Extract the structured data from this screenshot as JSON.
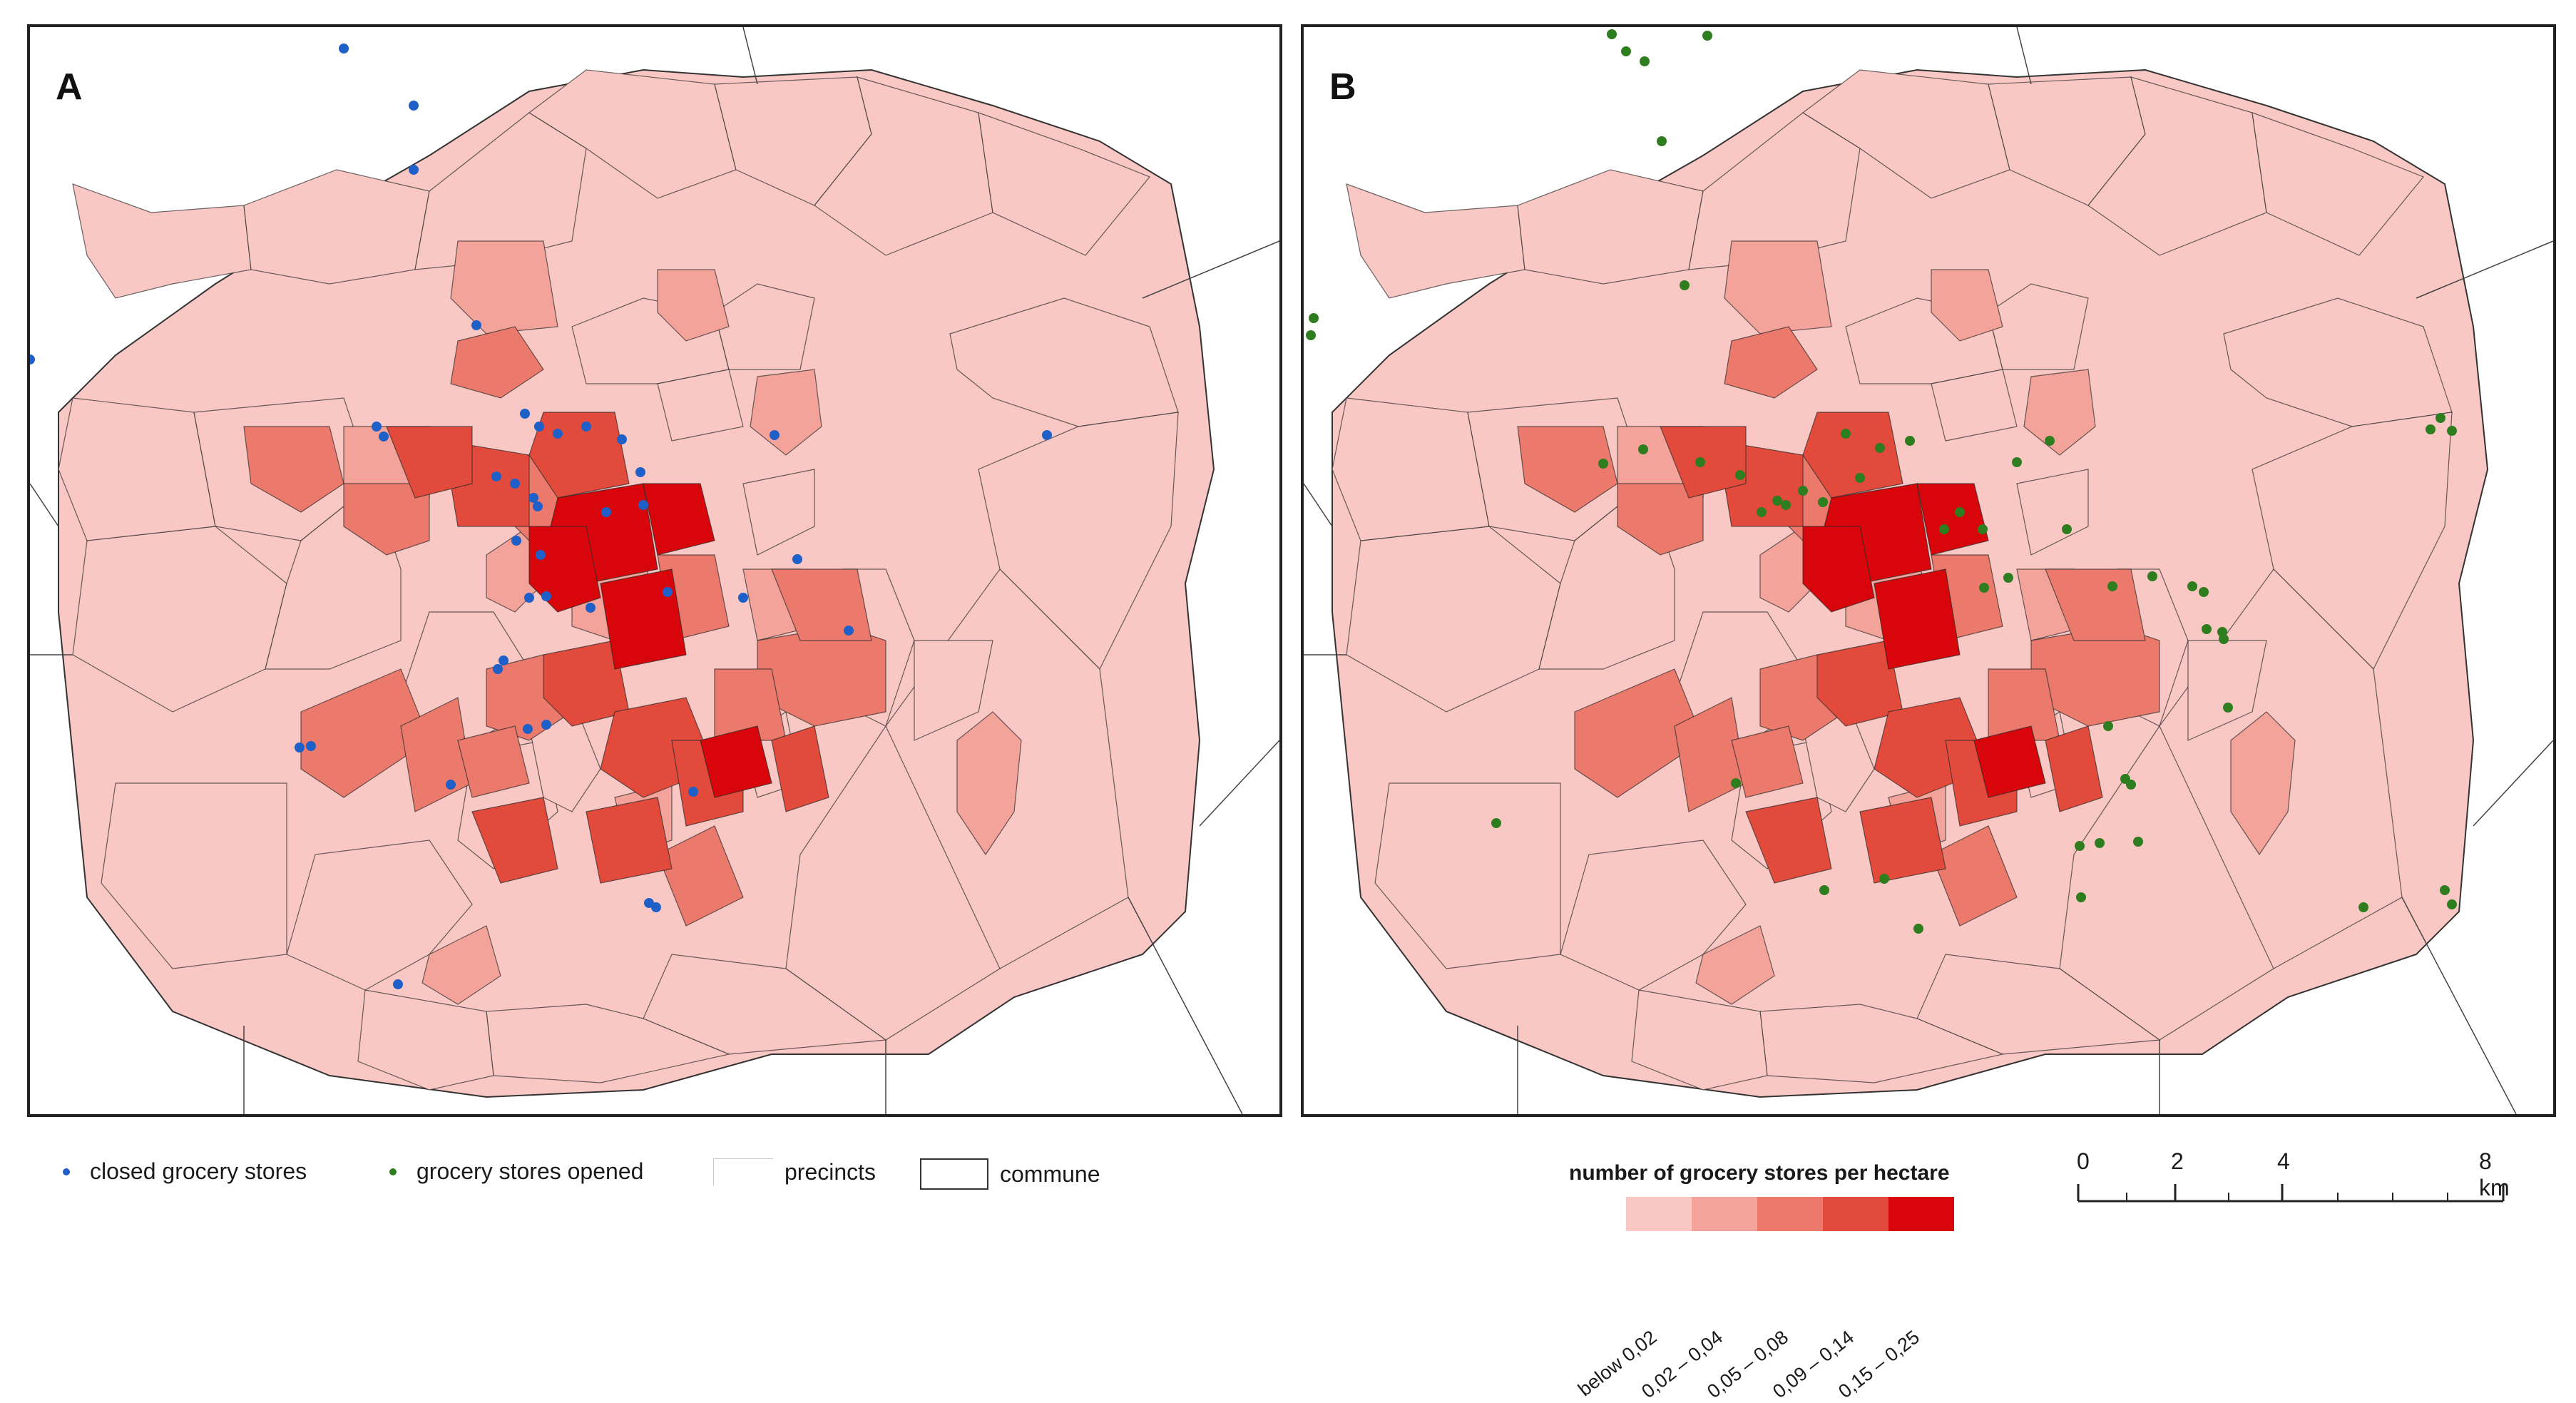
{
  "figure": {
    "panel_a": {
      "letter": "A",
      "point_color": "#1f5fc8"
    },
    "panel_b": {
      "letter": "B",
      "point_color": "#2e7d1e"
    }
  },
  "legend": {
    "closed_label": "closed grocery stores",
    "opened_label": "grocery stores opened",
    "precincts_label": "precincts",
    "commune_label": "commune",
    "closed_color": "#1f5fc8",
    "opened_color": "#2e7d1e"
  },
  "density_legend": {
    "title": "number of grocery stores per hectare",
    "classes": [
      {
        "label": "below 0,02",
        "color": "#f9c8c5"
      },
      {
        "label": "0,02 – 0,04",
        "color": "#f4a39b"
      },
      {
        "label": "0,05 – 0,08",
        "color": "#ec7a6c"
      },
      {
        "label": "0,09 – 0,14",
        "color": "#e24b3c"
      },
      {
        "label": "0,15 – 0,25",
        "color": "#d8060a"
      }
    ]
  },
  "scalebar": {
    "ticks": [
      "0",
      "2",
      "4",
      "8 km"
    ],
    "values_km": [
      0,
      2,
      4,
      8
    ]
  }
}
